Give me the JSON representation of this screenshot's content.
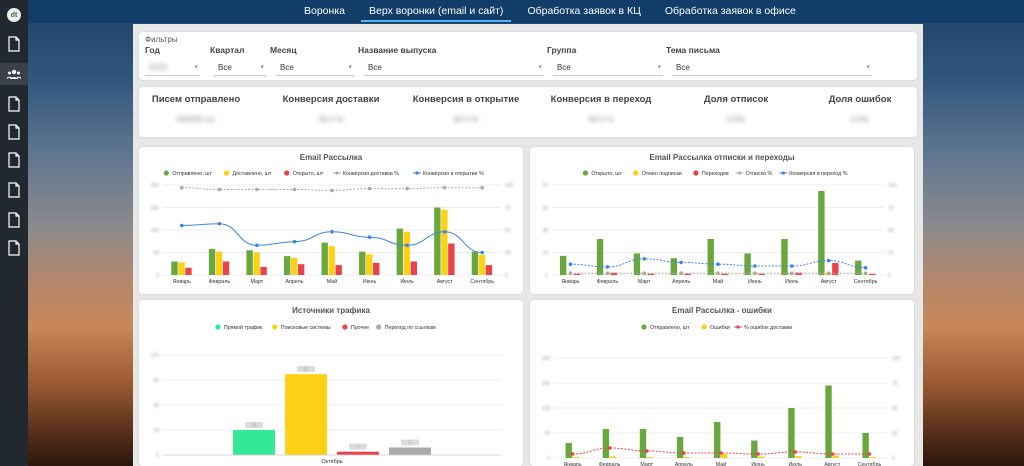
{
  "tabs": [
    {
      "label": "Воронка",
      "active": false
    },
    {
      "label": "Верх воронки (email и сайт)",
      "active": true
    },
    {
      "label": "Обработка заявок в КЦ",
      "active": false
    },
    {
      "label": "Обработка заявок в офисе",
      "active": false
    }
  ],
  "sidebar": {
    "logo_text": "dt",
    "icons": [
      "document-icon",
      "users-icon",
      "document-icon",
      "document-icon",
      "document-icon",
      "document-icon",
      "document-icon",
      "document-icon"
    ]
  },
  "filters": {
    "title": "Фильтры",
    "fields": [
      {
        "label": "Год",
        "value": "2023",
        "blurred": true
      },
      {
        "label": "Квартал",
        "value": "Все"
      },
      {
        "label": "Месяц",
        "value": "Все"
      },
      {
        "label": "Название выпуска",
        "value": "Все"
      },
      {
        "label": "Группа",
        "value": "Все"
      },
      {
        "label": "Тема письма",
        "value": "Все"
      }
    ]
  },
  "kpis": [
    {
      "title": "Писем отправлено",
      "value": "000000 шт"
    },
    {
      "title": "Конверсия доставки",
      "value": "00.0 %"
    },
    {
      "title": "Конверсия в открытие",
      "value": "00.0 %"
    },
    {
      "title": "Конверсия в переход",
      "value": "00.0 %"
    },
    {
      "title": "Доля отписок",
      "value": "0.0%"
    },
    {
      "title": "Доля ошибок",
      "value": "0.0%"
    }
  ],
  "colors": {
    "green": "#6aa83f",
    "yellow": "#fcd116",
    "red": "#e8434b",
    "gray": "#aaaaaa",
    "blue": "#3b86e0",
    "mint": "#34e895",
    "redline": "#e8434b"
  },
  "chart_data": [
    {
      "id": "c1",
      "type": "bar",
      "title": "Email Рассылка",
      "categories": [
        "Январь",
        "Февраль",
        "Март",
        "Апрель",
        "Май",
        "Июнь",
        "Июль",
        "Август",
        "Сентябрь"
      ],
      "series": [
        {
          "name": "Отправлено, шт",
          "kind": "bar",
          "color": "#6aa83f",
          "values": [
            30,
            58,
            55,
            42,
            72,
            52,
            103,
            150,
            52
          ]
        },
        {
          "name": "Доставлено, шт",
          "kind": "bar",
          "color": "#fcd116",
          "values": [
            28,
            52,
            50,
            38,
            64,
            46,
            96,
            145,
            45
          ]
        },
        {
          "name": "Открыто, шт",
          "kind": "bar",
          "color": "#e8434b",
          "values": [
            16,
            30,
            18,
            24,
            22,
            27,
            30,
            70,
            22
          ]
        },
        {
          "name": "Конверсия доставки %",
          "kind": "line",
          "color": "#aaaaaa",
          "dashed": true,
          "axis": "right",
          "values": [
            97,
            95,
            95,
            95,
            94,
            96,
            96,
            97,
            97
          ]
        },
        {
          "name": "Конверсия в открытие %",
          "kind": "line",
          "color": "#3b86e0",
          "axis": "right",
          "values": [
            55,
            57,
            33,
            37,
            48,
            42,
            33,
            48,
            25
          ]
        }
      ],
      "ylim": [
        0,
        200
      ],
      "y2lim": [
        0,
        100
      ],
      "grid": true,
      "legend": "top"
    },
    {
      "id": "c2",
      "type": "bar",
      "title": "Email Рассылка отписки и переходы",
      "categories": [
        "Январь",
        "Февраль",
        "Март",
        "Апрель",
        "Май",
        "Июнь",
        "Июль",
        "Август",
        "Сентябрь"
      ],
      "series": [
        {
          "name": "Открыто, шт",
          "kind": "bar",
          "color": "#6aa83f",
          "values": [
            16,
            30,
            18,
            14,
            30,
            18,
            30,
            70,
            12
          ]
        },
        {
          "name": "Отмен подписки",
          "kind": "bar",
          "color": "#fcd116",
          "values": [
            0.5,
            0.6,
            0.4,
            0.5,
            0.6,
            0.4,
            0.5,
            1.2,
            0.4
          ]
        },
        {
          "name": "Переходов",
          "kind": "bar",
          "color": "#e8434b",
          "values": [
            1,
            2,
            1,
            1,
            1,
            1,
            2,
            10,
            1
          ]
        },
        {
          "name": "Отписка %",
          "kind": "line",
          "color": "#aaaaaa",
          "dashed": true,
          "axis": "right",
          "values": [
            2,
            2,
            2,
            2,
            2,
            2,
            2,
            2,
            2
          ]
        },
        {
          "name": "Конверсия в переход %",
          "kind": "line",
          "color": "#3b86e0",
          "dashed": true,
          "axis": "right",
          "values": [
            12,
            9,
            18,
            14,
            12,
            10,
            10,
            16,
            8
          ]
        }
      ],
      "ylim": [
        0,
        75
      ],
      "y2lim": [
        0,
        100
      ],
      "grid": true,
      "legend": "top"
    },
    {
      "id": "c3",
      "type": "bar",
      "title": "Источники трафика",
      "categories": [
        "Октябрь"
      ],
      "series": [
        {
          "name": "Прямой трафик",
          "kind": "bar",
          "color": "#34e895",
          "values": [
            30
          ]
        },
        {
          "name": "Поисковые системы",
          "kind": "bar",
          "color": "#fcd116",
          "values": [
            97
          ]
        },
        {
          "name": "Прочее",
          "kind": "bar",
          "color": "#e8434b",
          "values": [
            4
          ]
        },
        {
          "name": "Переход по ссылкам",
          "kind": "bar",
          "color": "#aaaaaa",
          "values": [
            9
          ]
        }
      ],
      "ylim": [
        0,
        120
      ],
      "grid": true,
      "legend": "top",
      "grouping": "separated"
    },
    {
      "id": "c4",
      "type": "bar",
      "title": "Email Рассылка - ошибки",
      "categories": [
        "Январь",
        "Февраль",
        "Март",
        "Апрель",
        "Май",
        "Июнь",
        "Июль",
        "Август",
        "Сентябрь"
      ],
      "series": [
        {
          "name": "Отправлено, шт",
          "kind": "bar",
          "color": "#6aa83f",
          "values": [
            30,
            58,
            58,
            42,
            72,
            35,
            100,
            145,
            50
          ]
        },
        {
          "name": "Ошибки",
          "kind": "bar",
          "color": "#fcd116",
          "values": [
            2,
            3,
            2,
            2,
            8,
            3,
            4,
            5,
            2
          ]
        },
        {
          "name": "% ошибок доставки",
          "kind": "line",
          "color": "#e8434b",
          "dashed": true,
          "axis": "right",
          "values": [
            4,
            10,
            7,
            5,
            5,
            4,
            6,
            4,
            4
          ]
        }
      ],
      "ylim": [
        0,
        200
      ],
      "y2lim": [
        0,
        100
      ],
      "grid": true,
      "legend": "top"
    }
  ]
}
